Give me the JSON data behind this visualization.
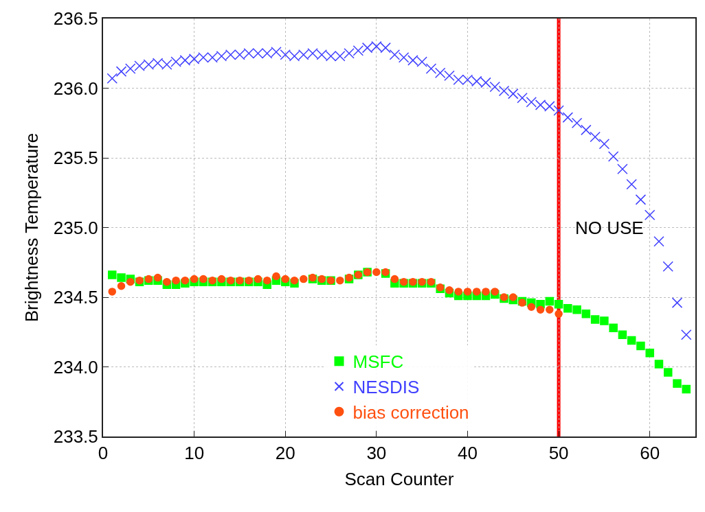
{
  "chart_data": {
    "type": "scatter",
    "xlabel": "Scan Counter",
    "ylabel": "Brightness Temperature",
    "x": [
      1,
      2,
      3,
      4,
      5,
      6,
      7,
      8,
      9,
      10,
      11,
      12,
      13,
      14,
      15,
      16,
      17,
      18,
      19,
      20,
      21,
      22,
      23,
      24,
      25,
      26,
      27,
      28,
      29,
      30,
      31,
      32,
      33,
      34,
      35,
      36,
      37,
      38,
      39,
      40,
      41,
      42,
      43,
      44,
      45,
      46,
      47,
      48,
      49,
      50,
      51,
      52,
      53,
      54,
      55,
      56,
      57,
      58,
      59,
      60,
      61,
      62,
      63,
      64
    ],
    "series": [
      {
        "name": "MSFC",
        "color": "#00ff00",
        "marker": "square",
        "values": [
          234.66,
          234.64,
          234.63,
          234.61,
          234.62,
          234.62,
          234.59,
          234.59,
          234.6,
          234.61,
          234.61,
          234.61,
          234.61,
          234.61,
          234.61,
          234.61,
          234.61,
          234.59,
          234.62,
          234.61,
          234.6,
          null,
          234.63,
          234.62,
          234.62,
          null,
          234.63,
          234.66,
          234.68,
          null,
          234.67,
          234.6,
          234.6,
          234.6,
          234.6,
          234.6,
          234.56,
          234.53,
          234.51,
          234.51,
          234.51,
          234.51,
          234.52,
          234.49,
          234.48,
          234.47,
          234.46,
          234.45,
          234.47,
          234.45,
          234.42,
          234.41,
          234.38,
          234.34,
          234.33,
          234.28,
          234.23,
          234.19,
          234.15,
          234.1,
          234.02,
          233.96,
          233.88,
          233.84
        ]
      },
      {
        "name": "NESDIS",
        "color": "#4040ff",
        "marker": "cross",
        "values": [
          236.07,
          236.12,
          236.14,
          236.16,
          236.17,
          236.18,
          236.17,
          236.19,
          236.2,
          236.21,
          236.22,
          236.22,
          236.23,
          236.24,
          236.24,
          236.25,
          236.25,
          236.25,
          236.26,
          236.24,
          236.23,
          236.24,
          236.25,
          236.24,
          236.23,
          236.23,
          236.25,
          236.27,
          236.29,
          236.3,
          236.29,
          236.24,
          236.22,
          236.2,
          236.19,
          236.14,
          236.11,
          236.09,
          236.06,
          236.06,
          236.05,
          236.04,
          236.01,
          235.98,
          235.96,
          235.93,
          235.9,
          235.88,
          235.87,
          235.84,
          235.79,
          235.75,
          235.7,
          235.65,
          235.6,
          235.51,
          235.42,
          235.31,
          235.2,
          235.09,
          234.9,
          234.72,
          234.46,
          234.23
        ]
      },
      {
        "name": "bias correction",
        "color": "#ff5010",
        "marker": "circle",
        "values": [
          234.54,
          234.58,
          234.61,
          234.62,
          234.63,
          234.64,
          234.61,
          234.62,
          234.62,
          234.63,
          234.63,
          234.62,
          234.63,
          234.62,
          234.62,
          234.62,
          234.63,
          234.62,
          234.65,
          234.63,
          234.62,
          234.63,
          234.64,
          234.63,
          234.62,
          234.62,
          234.64,
          234.66,
          234.68,
          234.68,
          234.68,
          234.63,
          234.61,
          234.61,
          234.61,
          234.61,
          234.57,
          234.55,
          234.54,
          234.54,
          234.54,
          234.54,
          234.54,
          234.5,
          234.5,
          234.46,
          234.43,
          234.41,
          234.41,
          234.38,
          null,
          null,
          null,
          null,
          null,
          null,
          null,
          null,
          null,
          null,
          null,
          null,
          null,
          null
        ]
      }
    ],
    "xlim": [
      0,
      65
    ],
    "xticks": [
      0,
      10,
      20,
      30,
      40,
      50,
      60
    ],
    "ylim": [
      233.5,
      236.5
    ],
    "yticks": [
      {
        "value": 233.5,
        "label": "233.5"
      },
      {
        "value": 234.0,
        "label": "234.0"
      },
      {
        "value": 234.5,
        "label": "234.5"
      },
      {
        "value": 235.0,
        "label": "235.0"
      },
      {
        "value": 235.5,
        "label": "235.5"
      },
      {
        "value": 236.0,
        "label": "236.0"
      },
      {
        "value": 236.5,
        "label": "236.5"
      }
    ],
    "ref_lines": [
      {
        "axis": "x",
        "value": 50,
        "label": "NO USE",
        "color": "#ff0000",
        "line_style": "solid"
      }
    ],
    "grid": true,
    "legend": "bottom"
  }
}
